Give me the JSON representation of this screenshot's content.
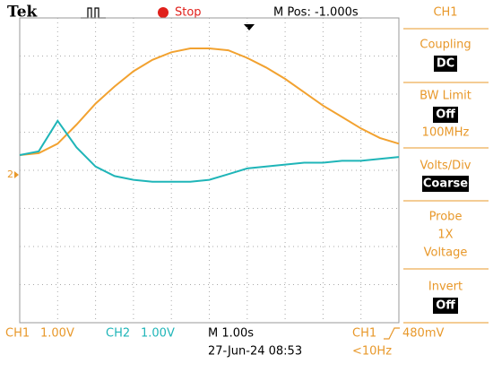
{
  "header": {
    "brand": "Tek",
    "status": "Stop",
    "position": "M Pos: -1.000s",
    "menu_title": "CH1"
  },
  "menu": [
    {
      "label": "Coupling",
      "value": "DC"
    },
    {
      "label": "BW Limit",
      "value": "Off",
      "note": "100MHz"
    },
    {
      "label": "Volts/Div",
      "value": "Coarse"
    },
    {
      "label": "Probe",
      "lines": [
        "1X",
        "Voltage"
      ]
    },
    {
      "label": "Invert",
      "value": "Off"
    }
  ],
  "footer": {
    "ch1": "CH1",
    "ch1_scale": "1.00V",
    "ch2": "CH2",
    "ch2_scale": "1.00V",
    "timebase": "M 1.00s",
    "date": "27-Jun-24 08:53",
    "trigger_source": "CH1",
    "trigger_level": "480mV",
    "frequency": "<10Hz"
  },
  "chart_data": {
    "type": "line",
    "ground_marker": "2",
    "x": [
      0,
      0.5,
      1,
      1.5,
      2,
      2.5,
      3,
      3.5,
      4,
      4.5,
      5,
      5.5,
      6,
      6.5,
      7,
      7.5,
      8,
      8.5,
      9,
      9.5,
      10
    ],
    "series": [
      {
        "name": "CH1",
        "color": "#f2a230",
        "values": [
          0.4,
          0.45,
          0.7,
          1.2,
          1.75,
          2.2,
          2.6,
          2.9,
          3.1,
          3.2,
          3.2,
          3.15,
          2.95,
          2.7,
          2.4,
          2.05,
          1.7,
          1.4,
          1.1,
          0.85,
          0.7
        ]
      },
      {
        "name": "CH2",
        "color": "#1fb5b8",
        "values": [
          0.4,
          0.5,
          1.3,
          0.6,
          0.1,
          -0.15,
          -0.25,
          -0.3,
          -0.3,
          -0.3,
          -0.25,
          -0.1,
          0.05,
          0.1,
          0.15,
          0.2,
          0.2,
          0.25,
          0.25,
          0.3,
          0.35
        ]
      }
    ],
    "xlim": [
      0,
      10
    ],
    "ylim": [
      -4,
      4
    ]
  }
}
